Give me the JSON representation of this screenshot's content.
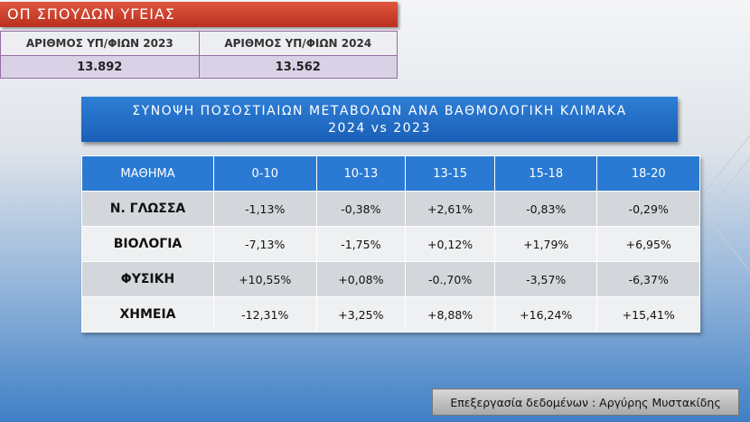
{
  "header": {
    "title": "ΟΠ ΣΠΟΥΔΩΝ ΥΓΕΙΑΣ"
  },
  "counts": {
    "headers": [
      "ΑΡΙΘΜΟΣ ΥΠ/ΦΙΩΝ 2023",
      "ΑΡΙΘΜΟΣ ΥΠ/ΦΙΩΝ 2024"
    ],
    "values": [
      "13.892",
      "13.562"
    ]
  },
  "summary": {
    "title": [
      "ΣΥΝΟΨΗ ΠΟΣΟΣΤΙΑΙΩΝ ΜΕΤΑΒΟΛΩΝ ΑΝΑ ΒΑΘΜΟΛΟΓΙΚΗ ΚΛΙΜΑΚΑ",
      "2024 vs 2023"
    ]
  },
  "table": {
    "headers": [
      "ΜΑΘΗΜΑ",
      "0-10",
      "10-13",
      "13-15",
      "15-18",
      "18-20"
    ],
    "rows": [
      [
        "Ν. ΓΛΩΣΣΑ",
        "-1,13%",
        "-0,38%",
        "+2,61%",
        "-0,83%",
        "-0,29%"
      ],
      [
        "ΒΙΟΛΟΓΙΑ",
        "-7,13%",
        "-1,75%",
        "+0,12%",
        "+1,79%",
        "+6,95%"
      ],
      [
        "ΦΥΣΙΚΗ",
        "+10,55%",
        "+0,08%",
        "-0.,70%",
        "-3,57%",
        "-6,37%"
      ],
      [
        "ΧΗΜΕΙΑ",
        "-12,31%",
        "+3,25%",
        "+8,88%",
        "+16,24%",
        "+15,41%"
      ]
    ]
  },
  "footer": {
    "credit": "Επεξεργασία δεδομένων : Αργύρης Μυστακίδης"
  }
}
